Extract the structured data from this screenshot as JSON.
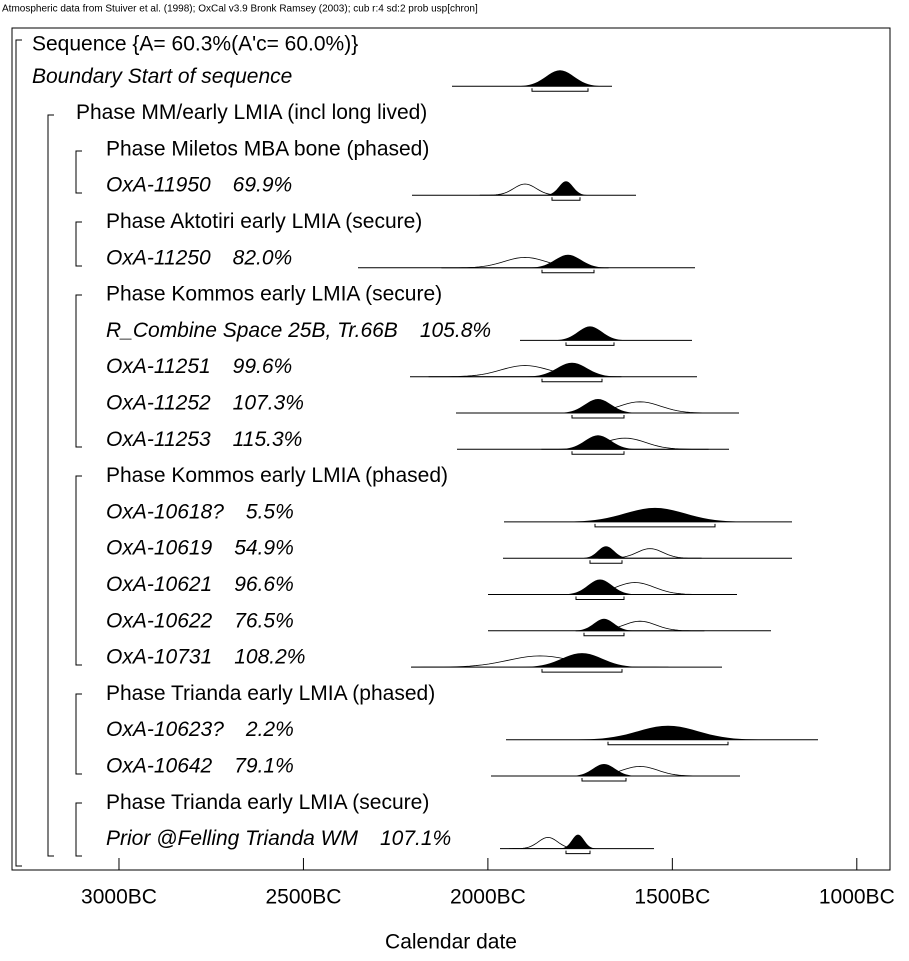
{
  "header": {
    "source": "Atmospheric data from Stuiver et al. (1998); OxCal v3.9 Bronk Ramsey (2003); cub r:4 sd:2 prob usp[chron]"
  },
  "chart_data": {
    "type": "oxcal",
    "xlabel": "Calendar date",
    "xlim": [
      3290,
      910
    ],
    "xticks": [
      {
        "value": 3000,
        "label": "3000BC"
      },
      {
        "value": 2500,
        "label": "2500BC"
      },
      {
        "value": 2000,
        "label": "2000BC"
      },
      {
        "value": 1500,
        "label": "1500BC"
      },
      {
        "value": 1000,
        "label": "1000BC"
      }
    ],
    "rows": [
      {
        "name": "Sequence {A= 60.3%(A'c= 60.0%)}"
      },
      {
        "name": "Boundary Start of sequence"
      },
      {
        "name": "Phase MM/early LMIA (incl long lived)"
      },
      {
        "name": "Phase Miletos MBA bone (phased)"
      },
      {
        "name": "OxA-11950",
        "agreement": "69.9%"
      },
      {
        "name": "Phase Aktotiri early LMIA (secure)"
      },
      {
        "name": "OxA-11250",
        "agreement": "82.0%"
      },
      {
        "name": "Phase Kommos early LMIA (secure)"
      },
      {
        "name": "R_Combine Space 25B, Tr.66B",
        "agreement": "105.8%"
      },
      {
        "name": "OxA-11251",
        "agreement": "99.6%"
      },
      {
        "name": "OxA-11252",
        "agreement": "107.3%"
      },
      {
        "name": "OxA-11253",
        "agreement": "115.3%"
      },
      {
        "name": "Phase Kommos early LMIA (phased)"
      },
      {
        "name": "OxA-10618?",
        "agreement": "5.5%"
      },
      {
        "name": "OxA-10619",
        "agreement": "54.9%"
      },
      {
        "name": "OxA-10621",
        "agreement": "96.6%"
      },
      {
        "name": "OxA-10622",
        "agreement": "76.5%"
      },
      {
        "name": "OxA-10731",
        "agreement": "108.2%"
      },
      {
        "name": "Phase Trianda early LMIA (phased)"
      },
      {
        "name": "OxA-10623?",
        "agreement": "2.2%"
      },
      {
        "name": "OxA-10642",
        "agreement": "79.1%"
      },
      {
        "name": "Phase Trianda early LMIA (secure)"
      },
      {
        "name": "Prior @Felling Trianda WM",
        "agreement": "107.1%"
      }
    ]
  }
}
